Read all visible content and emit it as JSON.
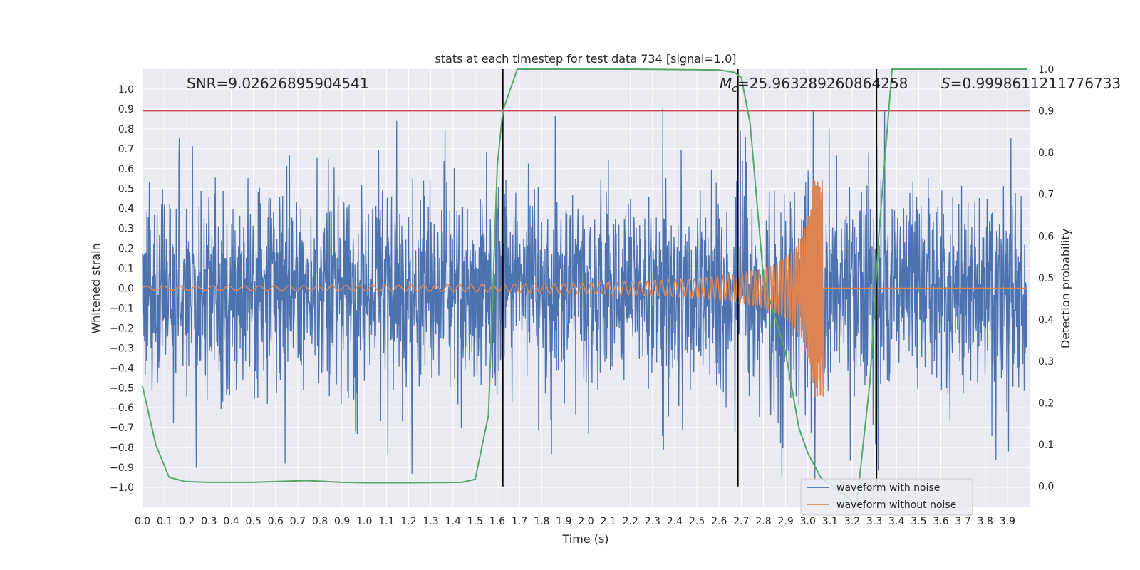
{
  "chart_data": {
    "type": "line",
    "title": "stats at each timestep for test data 734 [signal=1.0]",
    "xlabel": "Time (s)",
    "ylabel": "Whitened strain",
    "y2label": "Detection probability",
    "xlim": [
      0.0,
      4.0
    ],
    "ylim": [
      -1.1,
      1.1
    ],
    "y2lim": [
      -0.05,
      1.0
    ],
    "xticks": [
      "0.0",
      "0.1",
      "0.2",
      "0.3",
      "0.4",
      "0.5",
      "0.6",
      "0.7",
      "0.8",
      "0.9",
      "1.0",
      "1.1",
      "1.2",
      "1.3",
      "1.4",
      "1.5",
      "1.6",
      "1.7",
      "1.8",
      "1.9",
      "2.0",
      "2.1",
      "2.2",
      "2.3",
      "2.4",
      "2.5",
      "2.6",
      "2.7",
      "2.8",
      "2.9",
      "3.0",
      "3.1",
      "3.2",
      "3.3",
      "3.4",
      "3.5",
      "3.6",
      "3.7",
      "3.8",
      "3.9"
    ],
    "yticks": [
      "1.0",
      "0.9",
      "0.8",
      "0.7",
      "0.6",
      "0.5",
      "0.4",
      "0.3",
      "0.2",
      "0.1",
      "0.0",
      "−0.1",
      "−0.2",
      "−0.3",
      "−0.4",
      "−0.5",
      "−0.6",
      "−0.7",
      "−0.8",
      "−0.9",
      "−1.0"
    ],
    "y2ticks": [
      "1.0",
      "0.9",
      "0.8",
      "0.7",
      "0.6",
      "0.5",
      "0.4",
      "0.3",
      "0.2",
      "0.1",
      "0.0"
    ],
    "annotations": {
      "snr": "SNR=9.02626895904541",
      "mc_symbol": "M",
      "mc_sub": "c",
      "mc_value": "=25.963289260864258",
      "s_symbol": "S",
      "s_value": "=0.9998611211776733"
    },
    "threshold": {
      "axis": "y2",
      "value": 0.9,
      "color": "#c44e52"
    },
    "vlines": [
      1.625,
      2.685,
      3.31
    ],
    "series": [
      {
        "name": "waveform with noise",
        "color": "#4c72b0",
        "kind": "noise",
        "description": "whitened noisy strain, amplitude mostly within ±0.6, spikes to ±0.95"
      },
      {
        "name": "waveform without noise",
        "color": "#dd8452",
        "kind": "chirp",
        "amplitude_start": 0.01,
        "amplitude_peak": 0.55,
        "merger_time": 3.07
      },
      {
        "name": "detection probability",
        "color": "#55a868",
        "axis": "y2",
        "x": [
          0.0,
          0.06,
          0.12,
          0.19,
          0.3,
          0.5,
          0.74,
          0.9,
          1.0,
          1.2,
          1.44,
          1.5,
          1.56,
          1.6,
          1.625,
          1.69,
          1.8,
          2.2,
          2.6,
          2.67,
          2.7,
          2.74,
          2.8,
          2.9,
          2.96,
          3.0,
          3.06,
          3.14,
          3.22,
          3.28,
          3.32,
          3.38,
          3.5,
          3.7,
          3.99
        ],
        "y": [
          0.24,
          0.1,
          0.022,
          0.012,
          0.01,
          0.01,
          0.014,
          0.01,
          0.009,
          0.009,
          0.01,
          0.017,
          0.17,
          0.77,
          0.9,
          1.0,
          1.0,
          1.0,
          0.998,
          0.992,
          0.98,
          0.87,
          0.5,
          0.32,
          0.14,
          0.08,
          0.02,
          -0.01,
          -0.045,
          0.25,
          0.6,
          1.0,
          1.0,
          1.0,
          1.0
        ]
      }
    ],
    "legend": {
      "position": "bottom-right",
      "entries": [
        "waveform with noise",
        "waveform without noise"
      ]
    }
  }
}
